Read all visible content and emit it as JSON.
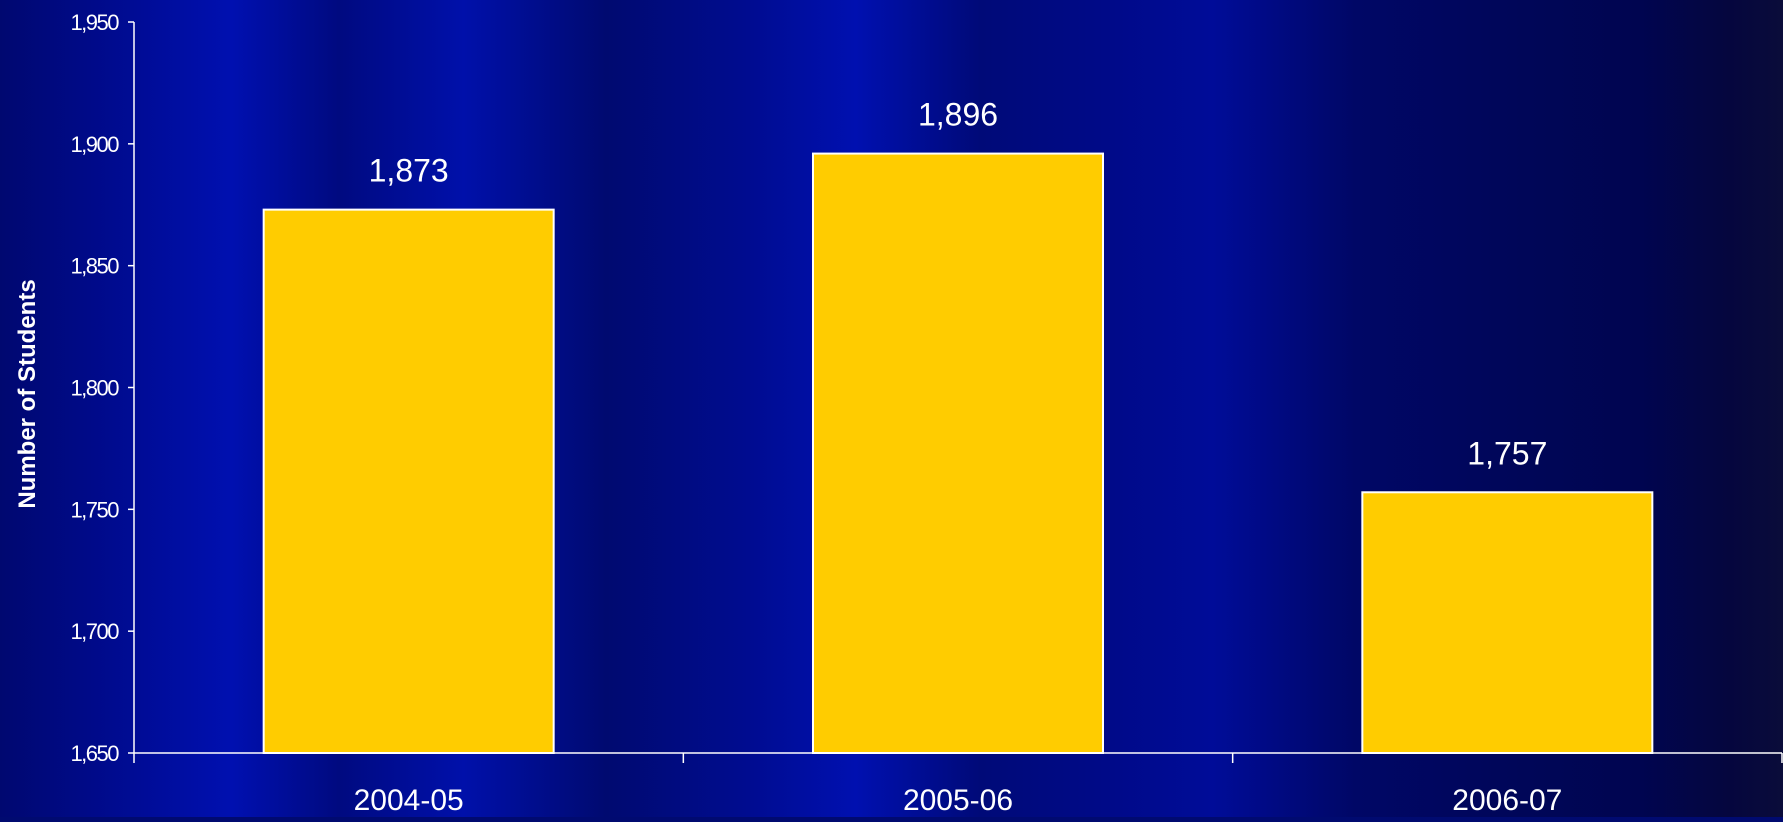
{
  "colors": {
    "bar_fill": "#FFCC00",
    "bar_stroke": "#FFFFFF",
    "axis": "#FFFFFF",
    "text": "#FFFFFF",
    "background_dark": "#000A5C",
    "background_light": "#0010B0"
  },
  "chart_data": {
    "type": "bar",
    "title": "",
    "xlabel": "",
    "ylabel": "Number of Students",
    "categories": [
      "2004-05",
      "2005-06",
      "2006-07"
    ],
    "values": [
      1873,
      1896,
      1757
    ],
    "data_labels": [
      "1,873",
      "1,896",
      "1,757"
    ],
    "ylim": [
      1650,
      1950
    ],
    "yticks": [
      1650,
      1700,
      1750,
      1800,
      1850,
      1900,
      1950
    ],
    "ytick_labels": [
      "1,650",
      "1,700",
      "1,750",
      "1,800",
      "1,850",
      "1,900",
      "1,950"
    ],
    "grid": false,
    "legend": "none"
  }
}
